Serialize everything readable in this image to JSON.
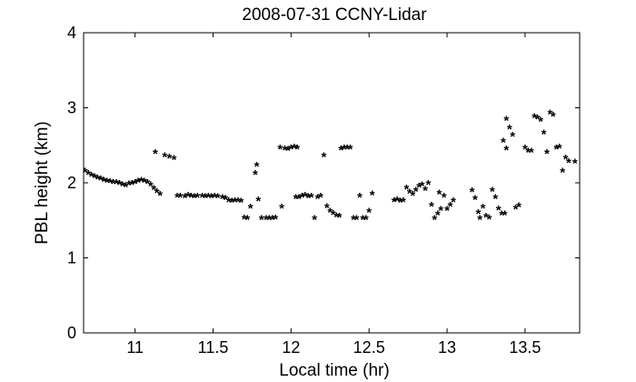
{
  "chart_data": {
    "type": "scatter",
    "title": "2008-07-31 CCNY-Lidar",
    "xlabel": "Local time (hr)",
    "ylabel": "PBL height (km)",
    "xlim": [
      10.67,
      13.85
    ],
    "ylim": [
      0,
      4
    ],
    "xticks": [
      11,
      11.5,
      12,
      12.5,
      13,
      13.5
    ],
    "xtick_labels": [
      "11",
      "11.5",
      "12",
      "12.5",
      "13",
      "13.5"
    ],
    "yticks": [
      0,
      1,
      2,
      3,
      4
    ],
    "ytick_labels": [
      "0",
      "1",
      "2",
      "3",
      "4"
    ],
    "grid": false,
    "marker": "*",
    "marker_color": "#000000",
    "series": [
      {
        "points": [
          [
            10.66,
            2.17
          ],
          [
            10.68,
            2.15
          ],
          [
            10.7,
            2.12
          ],
          [
            10.72,
            2.1
          ],
          [
            10.74,
            2.08
          ],
          [
            10.76,
            2.06
          ],
          [
            10.78,
            2.05
          ],
          [
            10.8,
            2.03
          ],
          [
            10.82,
            2.02
          ],
          [
            10.84,
            2.01
          ],
          [
            10.86,
            2.0
          ],
          [
            10.88,
            2.0
          ],
          [
            10.9,
            1.99
          ],
          [
            10.92,
            1.97
          ],
          [
            10.94,
            1.96
          ],
          [
            10.96,
            1.98
          ],
          [
            10.98,
            1.99
          ],
          [
            11.0,
            2.0
          ],
          [
            11.02,
            2.02
          ],
          [
            11.04,
            2.03
          ],
          [
            11.06,
            2.02
          ],
          [
            11.08,
            2.0
          ],
          [
            11.1,
            1.97
          ],
          [
            11.12,
            1.92
          ],
          [
            11.14,
            1.88
          ],
          [
            11.16,
            1.84
          ],
          [
            11.13,
            2.4
          ],
          [
            11.19,
            2.36
          ],
          [
            11.22,
            2.34
          ],
          [
            11.25,
            2.32
          ],
          [
            11.27,
            1.82
          ],
          [
            11.29,
            1.82
          ],
          [
            11.32,
            1.81
          ],
          [
            11.34,
            1.83
          ],
          [
            11.36,
            1.82
          ],
          [
            11.38,
            1.81
          ],
          [
            11.4,
            1.82
          ],
          [
            11.43,
            1.82
          ],
          [
            11.45,
            1.81
          ],
          [
            11.47,
            1.82
          ],
          [
            11.49,
            1.81
          ],
          [
            11.51,
            1.82
          ],
          [
            11.53,
            1.81
          ],
          [
            11.56,
            1.8
          ],
          [
            11.58,
            1.79
          ],
          [
            11.6,
            1.76
          ],
          [
            11.62,
            1.75
          ],
          [
            11.64,
            1.76
          ],
          [
            11.66,
            1.76
          ],
          [
            11.68,
            1.75
          ],
          [
            11.7,
            1.53
          ],
          [
            11.72,
            1.52
          ],
          [
            11.74,
            1.67
          ],
          [
            11.77,
            2.12
          ],
          [
            11.78,
            2.23
          ],
          [
            11.79,
            1.77
          ],
          [
            11.81,
            1.52
          ],
          [
            11.84,
            1.52
          ],
          [
            11.86,
            1.52
          ],
          [
            11.88,
            1.52
          ],
          [
            11.9,
            1.53
          ],
          [
            11.93,
            2.46
          ],
          [
            11.96,
            2.45
          ],
          [
            11.98,
            2.44
          ],
          [
            12.0,
            2.46
          ],
          [
            12.02,
            2.47
          ],
          [
            12.04,
            2.46
          ],
          [
            11.94,
            1.67
          ],
          [
            12.03,
            1.8
          ],
          [
            12.05,
            1.8
          ],
          [
            12.07,
            1.82
          ],
          [
            12.09,
            1.83
          ],
          [
            12.11,
            1.81
          ],
          [
            12.13,
            1.82
          ],
          [
            12.15,
            1.52
          ],
          [
            12.17,
            1.8
          ],
          [
            12.19,
            1.82
          ],
          [
            12.21,
            2.36
          ],
          [
            12.23,
            1.68
          ],
          [
            12.25,
            1.62
          ],
          [
            12.27,
            1.59
          ],
          [
            12.29,
            1.56
          ],
          [
            12.31,
            1.55
          ],
          [
            12.32,
            2.45
          ],
          [
            12.34,
            2.46
          ],
          [
            12.36,
            2.46
          ],
          [
            12.38,
            2.46
          ],
          [
            12.4,
            1.52
          ],
          [
            12.42,
            1.52
          ],
          [
            12.44,
            1.82
          ],
          [
            12.46,
            1.52
          ],
          [
            12.48,
            1.52
          ],
          [
            12.5,
            1.62
          ],
          [
            12.52,
            1.85
          ],
          [
            12.66,
            1.76
          ],
          [
            12.68,
            1.77
          ],
          [
            12.7,
            1.75
          ],
          [
            12.72,
            1.76
          ],
          [
            12.74,
            1.93
          ],
          [
            12.76,
            1.87
          ],
          [
            12.78,
            1.84
          ],
          [
            12.8,
            1.9
          ],
          [
            12.82,
            1.95
          ],
          [
            12.84,
            1.97
          ],
          [
            12.86,
            1.91
          ],
          [
            12.88,
            1.99
          ],
          [
            12.9,
            1.7
          ],
          [
            12.92,
            1.52
          ],
          [
            12.94,
            1.58
          ],
          [
            12.96,
            1.64
          ],
          [
            12.98,
            1.82
          ],
          [
            13.0,
            1.64
          ],
          [
            13.02,
            1.7
          ],
          [
            13.04,
            1.76
          ],
          [
            12.95,
            1.86
          ],
          [
            13.16,
            1.89
          ],
          [
            13.18,
            1.79
          ],
          [
            13.2,
            1.6
          ],
          [
            13.21,
            1.52
          ],
          [
            13.23,
            1.67
          ],
          [
            13.25,
            1.55
          ],
          [
            13.27,
            1.53
          ],
          [
            13.29,
            1.9
          ],
          [
            13.31,
            1.8
          ],
          [
            13.33,
            1.65
          ],
          [
            13.35,
            1.58
          ],
          [
            13.37,
            1.58
          ],
          [
            13.44,
            1.66
          ],
          [
            13.46,
            1.69
          ],
          [
            13.38,
            2.84
          ],
          [
            13.4,
            2.73
          ],
          [
            13.42,
            2.63
          ],
          [
            13.36,
            2.55
          ],
          [
            13.38,
            2.45
          ],
          [
            13.5,
            2.46
          ],
          [
            13.52,
            2.42
          ],
          [
            13.54,
            2.42
          ],
          [
            13.56,
            2.88
          ],
          [
            13.58,
            2.86
          ],
          [
            13.6,
            2.83
          ],
          [
            13.62,
            2.66
          ],
          [
            13.64,
            2.4
          ],
          [
            13.66,
            2.93
          ],
          [
            13.68,
            2.9
          ],
          [
            13.7,
            2.46
          ],
          [
            13.72,
            2.47
          ],
          [
            13.74,
            2.15
          ],
          [
            13.76,
            2.33
          ],
          [
            13.78,
            2.28
          ],
          [
            13.82,
            2.27
          ]
        ]
      }
    ]
  }
}
